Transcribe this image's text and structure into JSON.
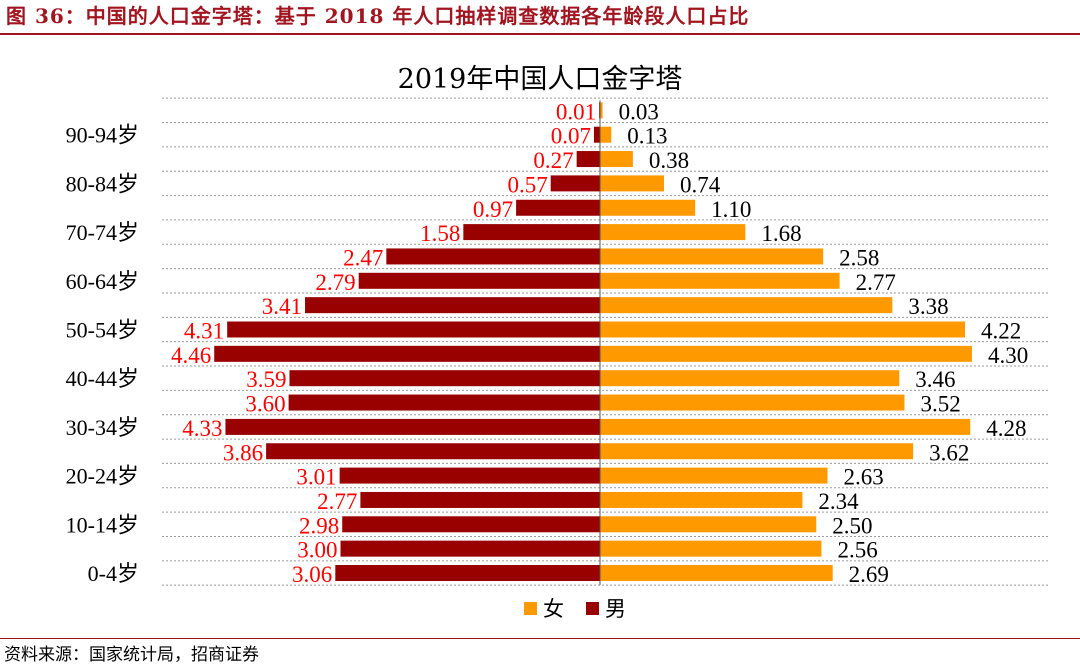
{
  "figure": {
    "caption": "图 36：中国的人口金字塔：基于 2018 年人口抽样调查数据各年龄段人口占比",
    "source": "资料来源：国家统计局，招商证券"
  },
  "colors": {
    "male": "#990000",
    "female": "#ff9900",
    "male_label": "#ff0000",
    "female_label": "#000000",
    "brand": "#a01520"
  },
  "chart_data": {
    "type": "bar",
    "orientation": "horizontal",
    "title": "2019年中国人口金字塔",
    "categories": [
      "0-4岁",
      "",
      "10-14岁",
      "",
      "20-24岁",
      "",
      "30-34岁",
      "",
      "40-44岁",
      "",
      "50-54岁",
      "",
      "60-64岁",
      "",
      "70-74岁",
      "",
      "80-84岁",
      "",
      "90-94岁",
      ""
    ],
    "series": [
      {
        "name": "女",
        "values": [
          2.69,
          2.56,
          2.5,
          2.34,
          2.63,
          3.62,
          4.28,
          3.52,
          3.46,
          4.3,
          4.22,
          3.38,
          2.77,
          2.58,
          1.68,
          1.1,
          0.74,
          0.38,
          0.13,
          0.03
        ]
      },
      {
        "name": "男",
        "values": [
          3.06,
          3.0,
          2.98,
          2.77,
          3.01,
          3.86,
          4.33,
          3.6,
          3.59,
          4.46,
          4.31,
          3.41,
          2.79,
          2.47,
          1.58,
          0.97,
          0.57,
          0.27,
          0.07,
          0.01
        ]
      }
    ],
    "legend_position": "bottom",
    "grid": "horizontal-dotted",
    "xlim": [
      -4.6,
      4.6
    ]
  }
}
